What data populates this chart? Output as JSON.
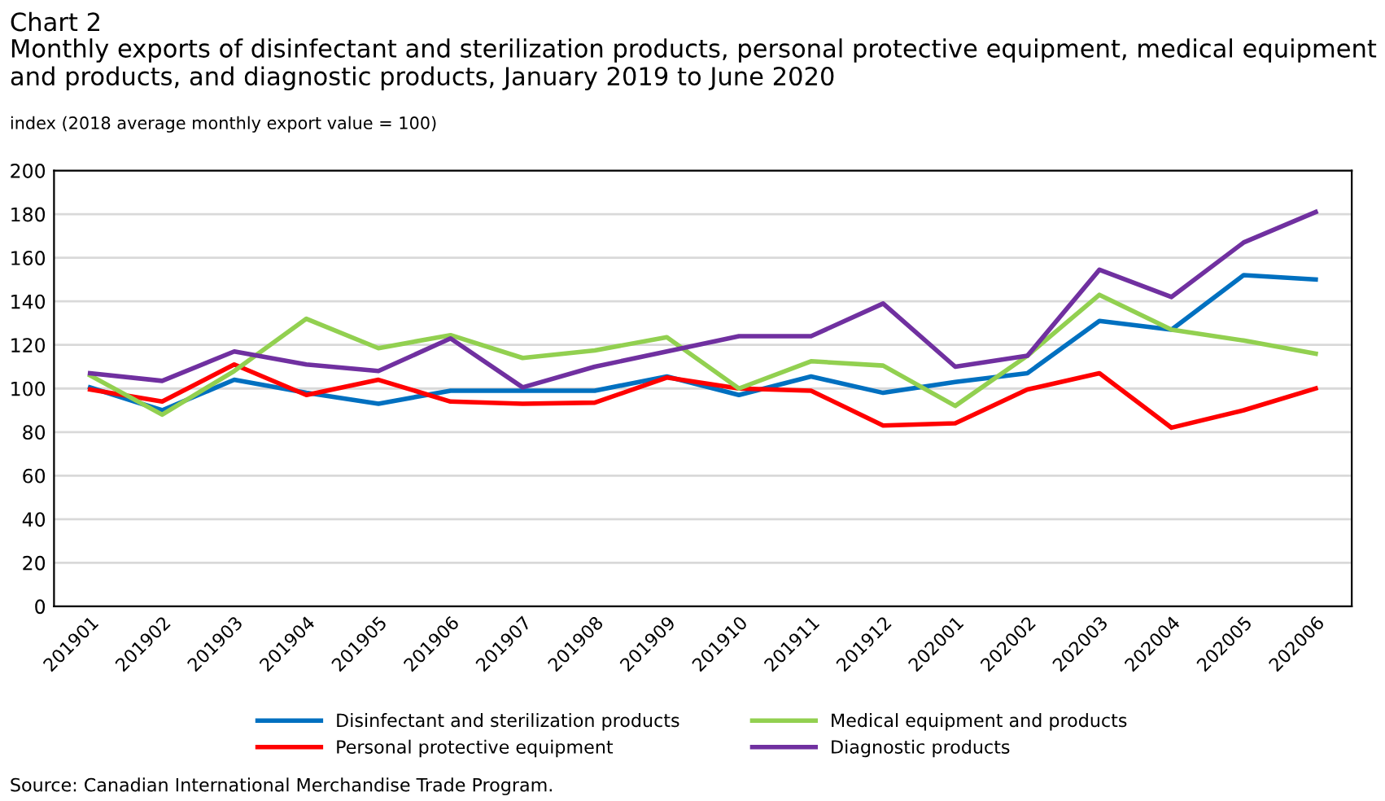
{
  "chart_data": {
    "type": "line",
    "title": "Chart 2",
    "subtitle": "Monthly exports of disinfectant and sterilization products, personal protective equipment, medical equipment and products, and diagnostic products, January 2019 to June 2020",
    "ylabel": "index (2018 average monthly export value = 100)",
    "categories": [
      "201901",
      "201902",
      "201903",
      "201904",
      "201905",
      "201906",
      "201907",
      "201908",
      "201909",
      "201910",
      "201911",
      "201912",
      "202001",
      "202002",
      "202003",
      "202004",
      "202005",
      "202006"
    ],
    "series": [
      {
        "name": "Disinfectant and sterilization products",
        "color": "#0070c0",
        "values": [
          100.5,
          90,
          104,
          98,
          93,
          99,
          99,
          99,
          105.5,
          97,
          105.5,
          98,
          103,
          107,
          131,
          127,
          152,
          150
        ]
      },
      {
        "name": "Personal protective equipment",
        "color": "#ff0000",
        "values": [
          99.5,
          94,
          111,
          97,
          104,
          94,
          93,
          93.5,
          105,
          100,
          99,
          83,
          84,
          99.5,
          107,
          82,
          90,
          100
        ]
      },
      {
        "name": "Medical equipment and products",
        "color": "#92d050",
        "values": [
          106,
          88,
          108,
          132,
          118.5,
          124.5,
          114,
          117.5,
          123.5,
          100,
          112.5,
          110.5,
          92,
          115,
          143,
          127,
          122,
          116
        ]
      },
      {
        "name": "Diagnostic products",
        "color": "#7030a0",
        "values": [
          107,
          103.5,
          117,
          111,
          108,
          123,
          100.5,
          110,
          117,
          124,
          124,
          139,
          110,
          115,
          154.5,
          142,
          167,
          181
        ]
      }
    ],
    "ylim": [
      0,
      200
    ],
    "yticks": [
      0,
      20,
      40,
      60,
      80,
      100,
      120,
      140,
      160,
      180,
      200
    ],
    "grid": "y",
    "legend": "bottom",
    "marker": "none",
    "line_style": "solid",
    "annotations": [
      "Source: Canadian International Merchandise Trade Program."
    ]
  }
}
